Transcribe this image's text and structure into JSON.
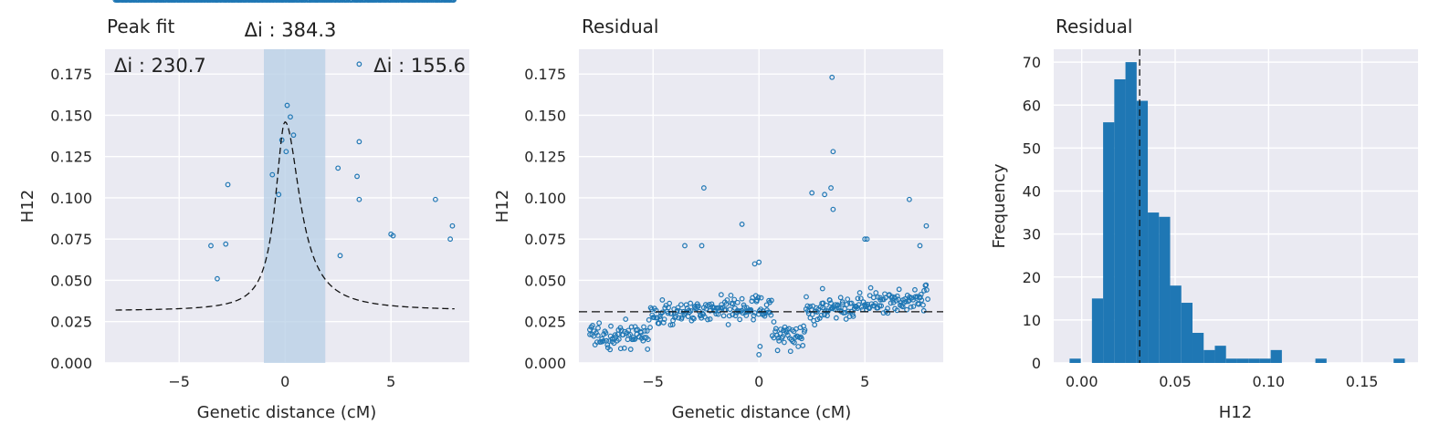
{
  "chart_data": [
    {
      "type": "scatter",
      "title": "Peak fit",
      "xlabel": "Genetic distance (cM)",
      "ylabel": "H12",
      "xlim": [
        -8.5,
        8.7
      ],
      "ylim": [
        0,
        0.19
      ],
      "xticks": [
        -5,
        0,
        5
      ],
      "xtick_labels": [
        "−5",
        "0",
        "5"
      ],
      "yticks": [
        0,
        0.025,
        0.05,
        0.075,
        0.1,
        0.125,
        0.15,
        0.175
      ],
      "ytick_labels": [
        "0.000",
        "0.025",
        "0.050",
        "0.075",
        "0.100",
        "0.125",
        "0.150",
        "0.175"
      ],
      "grid": true,
      "marker_color": "#1f77b4",
      "background": "#eaeaf2",
      "baseline": 0.0315,
      "peak": {
        "center": 0.0,
        "height": 0.146,
        "width_left": 0.55,
        "width_right": 0.85
      },
      "shaded_region": [
        -1.0,
        1.9
      ],
      "shade_color": "#b7cfe6",
      "annotations": {
        "left_label": "Δi : 230.7",
        "center_label": "Δi : 384.3",
        "right_label": "Δi : 155.6"
      },
      "outliers": [
        {
          "x": -2.7,
          "y": 0.108
        },
        {
          "x": -3.5,
          "y": 0.071
        },
        {
          "x": -2.8,
          "y": 0.072
        },
        {
          "x": -0.6,
          "y": 0.114
        },
        {
          "x": -0.3,
          "y": 0.102
        },
        {
          "x": 0.1,
          "y": 0.156
        },
        {
          "x": 0.25,
          "y": 0.149
        },
        {
          "x": -0.15,
          "y": 0.135
        },
        {
          "x": 0.4,
          "y": 0.138
        },
        {
          "x": 0.05,
          "y": 0.128
        },
        {
          "x": 2.5,
          "y": 0.118
        },
        {
          "x": 3.5,
          "y": 0.134
        },
        {
          "x": 3.4,
          "y": 0.113
        },
        {
          "x": 3.5,
          "y": 0.099
        },
        {
          "x": 3.5,
          "y": 0.181
        },
        {
          "x": 5.0,
          "y": 0.078
        },
        {
          "x": 5.1,
          "y": 0.077
        },
        {
          "x": 7.1,
          "y": 0.099
        },
        {
          "x": 7.9,
          "y": 0.083
        },
        {
          "x": 7.8,
          "y": 0.075
        },
        {
          "x": 2.6,
          "y": 0.065
        },
        {
          "x": -3.2,
          "y": 0.051
        }
      ]
    },
    {
      "type": "scatter",
      "title": "Residual",
      "xlabel": "Genetic distance (cM)",
      "ylabel": "H12",
      "xlim": [
        -8.5,
        8.7
      ],
      "ylim": [
        0,
        0.19
      ],
      "xticks": [
        -5,
        0,
        5
      ],
      "xtick_labels": [
        "−5",
        "0",
        "5"
      ],
      "yticks": [
        0,
        0.025,
        0.05,
        0.075,
        0.1,
        0.125,
        0.15,
        0.175
      ],
      "ytick_labels": [
        "0.000",
        "0.025",
        "0.050",
        "0.075",
        "0.100",
        "0.125",
        "0.150",
        "0.175"
      ],
      "grid": true,
      "marker_color": "#1f77b4",
      "background": "#eaeaf2",
      "baseline": 0.031,
      "outliers": [
        {
          "x": 3.45,
          "y": 0.173
        },
        {
          "x": 3.5,
          "y": 0.128
        },
        {
          "x": 3.4,
          "y": 0.106
        },
        {
          "x": 3.5,
          "y": 0.093
        },
        {
          "x": 2.5,
          "y": 0.103
        },
        {
          "x": 3.1,
          "y": 0.102
        },
        {
          "x": -2.6,
          "y": 0.106
        },
        {
          "x": -0.8,
          "y": 0.084
        },
        {
          "x": -3.5,
          "y": 0.071
        },
        {
          "x": -2.7,
          "y": 0.071
        },
        {
          "x": 0.0,
          "y": 0.061
        },
        {
          "x": -0.2,
          "y": 0.06
        },
        {
          "x": 5.0,
          "y": 0.075
        },
        {
          "x": 5.1,
          "y": 0.075
        },
        {
          "x": 7.1,
          "y": 0.099
        },
        {
          "x": 7.9,
          "y": 0.083
        },
        {
          "x": 7.6,
          "y": 0.071
        },
        {
          "x": 0.0,
          "y": 0.005
        },
        {
          "x": 0.05,
          "y": 0.01
        },
        {
          "x": 3.0,
          "y": 0.045
        }
      ]
    },
    {
      "type": "bar",
      "title": "Residual",
      "xlabel": "H12",
      "ylabel": "Frequency",
      "xlim": [
        -0.015,
        0.18
      ],
      "ylim": [
        0,
        73
      ],
      "xticks": [
        0.0,
        0.05,
        0.1,
        0.15
      ],
      "xtick_labels": [
        "0.00",
        "0.05",
        "0.10",
        "0.15"
      ],
      "yticks": [
        0,
        10,
        20,
        30,
        40,
        50,
        60,
        70
      ],
      "ytick_labels": [
        "0",
        "10",
        "20",
        "30",
        "40",
        "50",
        "60",
        "70"
      ],
      "grid": true,
      "bar_color": "#1f77b4",
      "background": "#eaeaf2",
      "bin_start": -0.0065,
      "bin_width": 0.00598,
      "values": [
        1,
        0,
        15,
        56,
        66,
        70,
        61,
        35,
        34,
        18,
        14,
        7,
        3,
        4,
        1,
        1,
        1,
        1,
        3,
        0,
        0,
        0,
        1,
        0,
        0,
        0,
        0,
        0,
        0,
        1
      ],
      "mean_line": 0.031
    }
  ]
}
